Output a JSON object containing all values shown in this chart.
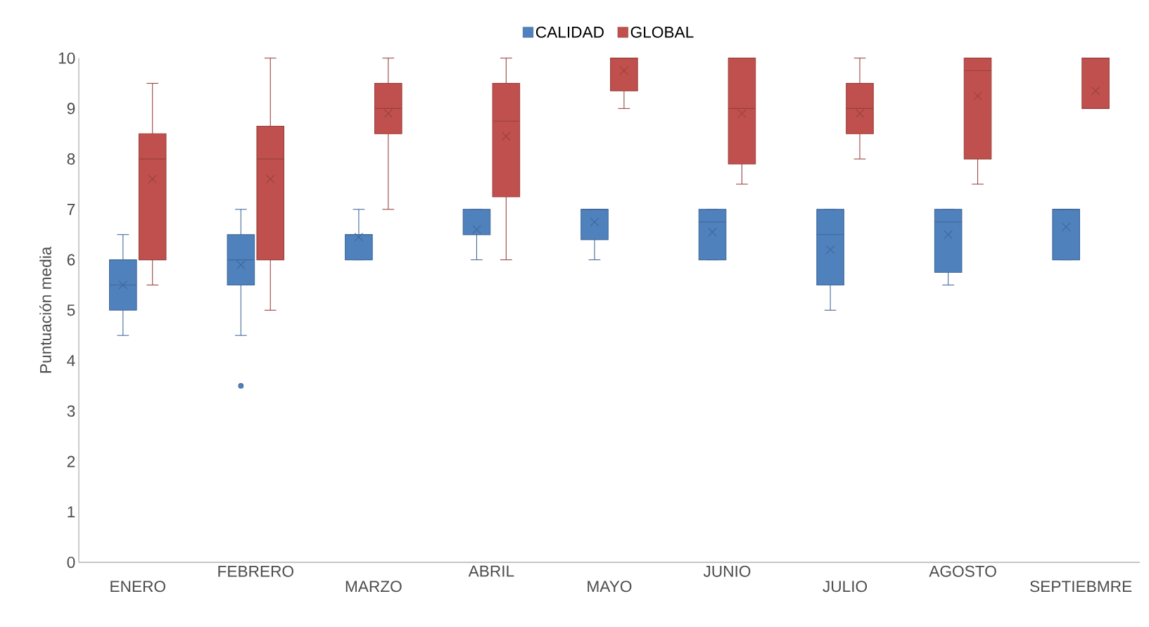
{
  "chart_data": {
    "type": "box",
    "ylabel": "Puntuación media",
    "categories": [
      "ENERO",
      "FEBRERO",
      "MARZO",
      "ABRIL",
      "MAYO",
      "JUNIO",
      "JULIO",
      "AGOSTO",
      "SEPTIEBMRE"
    ],
    "series": [
      {
        "name": "CALIDAD",
        "color": "#4f81bd",
        "boxes": [
          {
            "low": 4.5,
            "q1": 5,
            "median": 5.5,
            "q3": 6,
            "high": 6.5,
            "mean": 5.5
          },
          {
            "low": 4.5,
            "q1": 5.5,
            "median": 6,
            "q3": 6.5,
            "high": 7,
            "mean": 5.9,
            "outliers": [
              3.5
            ]
          },
          {
            "low": 6,
            "q1": 6,
            "median": 6.5,
            "q3": 6.5,
            "high": 7,
            "mean": 6.45
          },
          {
            "low": 6,
            "q1": 6.5,
            "median": 6.5,
            "q3": 7,
            "high": 7,
            "mean": 6.6
          },
          {
            "low": 6,
            "q1": 6.4,
            "median": 7,
            "q3": 7,
            "high": 7,
            "mean": 6.75
          },
          {
            "low": 6,
            "q1": 6,
            "median": 6.75,
            "q3": 7,
            "high": 7,
            "mean": 6.55
          },
          {
            "low": 5,
            "q1": 5.5,
            "median": 6.5,
            "q3": 7,
            "high": 7,
            "mean": 6.2
          },
          {
            "low": 5.5,
            "q1": 5.75,
            "median": 6.75,
            "q3": 7,
            "high": 7,
            "mean": 6.5
          },
          {
            "low": 6,
            "q1": 6,
            "median": 7,
            "q3": 7,
            "high": 7,
            "mean": 6.65
          }
        ]
      },
      {
        "name": "GLOBAL",
        "color": "#c0504d",
        "boxes": [
          {
            "low": 5.5,
            "q1": 6,
            "median": 8,
            "q3": 8.5,
            "high": 9.5,
            "mean": 7.6
          },
          {
            "low": 5,
            "q1": 6,
            "median": 8,
            "q3": 8.65,
            "high": 10,
            "mean": 7.6
          },
          {
            "low": 7,
            "q1": 8.5,
            "median": 9,
            "q3": 9.5,
            "high": 10,
            "mean": 8.9
          },
          {
            "low": 6,
            "q1": 7.25,
            "median": 8.75,
            "q3": 9.5,
            "high": 10,
            "mean": 8.45
          },
          {
            "low": 9,
            "q1": 9.35,
            "median": 10,
            "q3": 10,
            "high": 10,
            "mean": 9.75
          },
          {
            "low": 7.5,
            "q1": 7.9,
            "median": 9,
            "q3": 10,
            "high": 10,
            "mean": 8.9
          },
          {
            "low": 8,
            "q1": 8.5,
            "median": 9,
            "q3": 9.5,
            "high": 10,
            "mean": 8.9
          },
          {
            "low": 7.5,
            "q1": 8,
            "median": 9.75,
            "q3": 10,
            "high": 10,
            "mean": 9.25
          },
          {
            "low": 9,
            "q1": 9,
            "median": 10,
            "q3": 10,
            "high": 10,
            "mean": 9.35
          }
        ]
      }
    ],
    "ylim": [
      0,
      10
    ],
    "yticks": [
      0,
      1,
      2,
      3,
      4,
      5,
      6,
      7,
      8,
      9,
      10
    ],
    "legend": "top"
  }
}
